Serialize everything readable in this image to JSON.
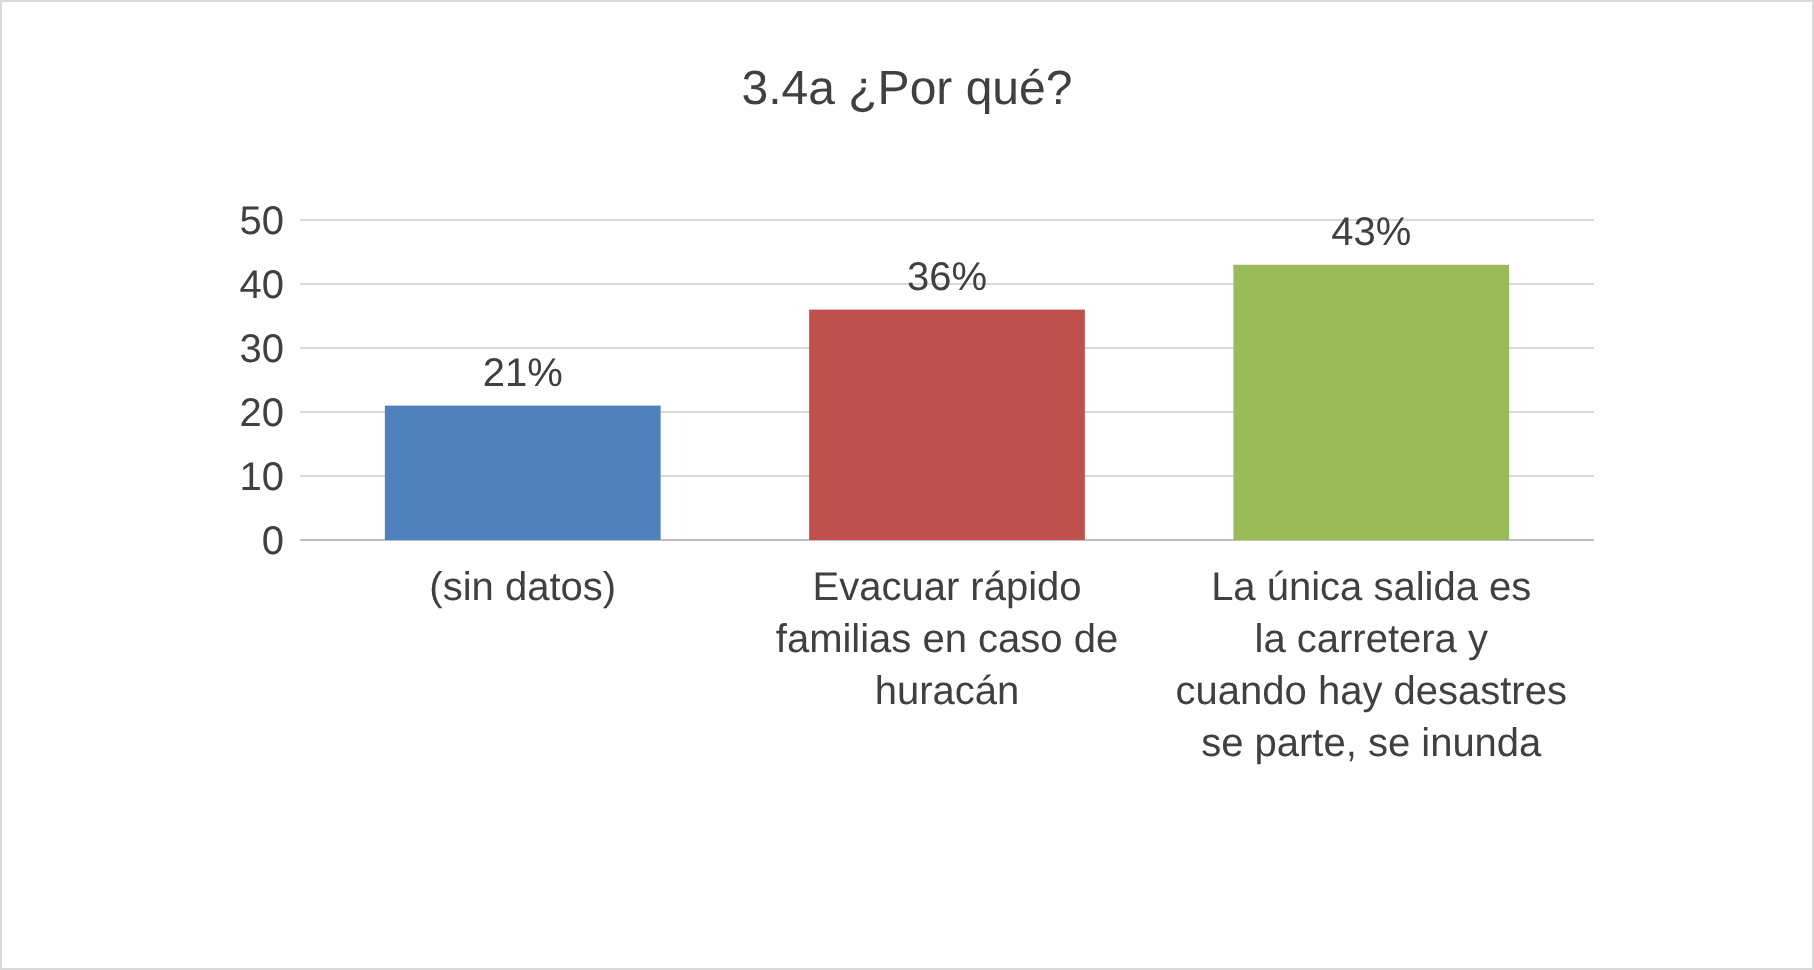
{
  "chart_data": {
    "type": "bar",
    "title": "3.4a ¿Por qué?",
    "categories": [
      "(sin datos)",
      "Evacuar rápido familias en caso de huracán",
      "La única salida es la carretera y cuando hay desastres se parte, se inunda"
    ],
    "values": [
      21,
      36,
      43
    ],
    "colors": [
      "#4f81bd",
      "#c0504d",
      "#9bbb59"
    ],
    "value_labels": [
      "21%",
      "36%",
      "43%"
    ],
    "ylim": [
      0,
      50
    ],
    "yticks": [
      0,
      10,
      20,
      30,
      40,
      50
    ],
    "grid": "y"
  }
}
